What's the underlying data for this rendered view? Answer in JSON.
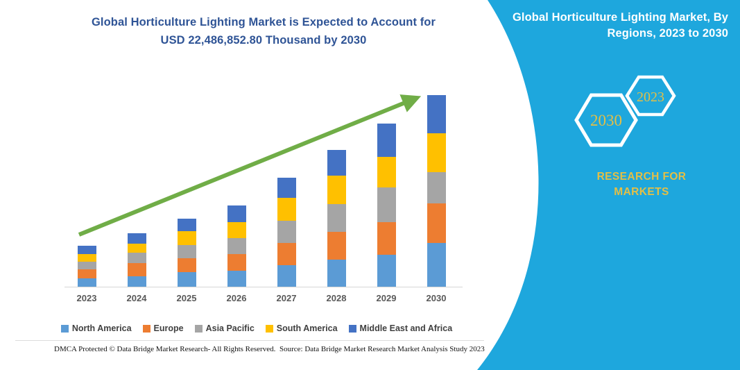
{
  "main_title": {
    "line1": "Global Horticulture Lighting Market is Expected to Account for",
    "line2": "USD 22,486,852.80 Thousand by 2030",
    "color": "#2F5496"
  },
  "chart_data": {
    "type": "bar",
    "stacked": true,
    "title": "Global Horticulture Lighting Market is Expected to Account for USD 22,486,852.80 Thousand by 2030",
    "units": "USD Thousand (values estimated from bar heights; only 2030 total is labeled)",
    "stated_2030_total": "USD 22,486,852.80 Thousand",
    "categories": [
      "2023",
      "2024",
      "2025",
      "2026",
      "2027",
      "2028",
      "2029",
      "2030"
    ],
    "series": [
      {
        "name": "North America",
        "color": "#5B9BD5",
        "values": [
          950000,
          1250000,
          1700000,
          1850000,
          2550000,
          3150000,
          3750000,
          5150000
        ]
      },
      {
        "name": "Europe",
        "color": "#ED7D31",
        "values": [
          1050000,
          1500000,
          1650000,
          1950000,
          2550000,
          3250000,
          3850000,
          4600000
        ]
      },
      {
        "name": "Asia Pacific",
        "color": "#A5A5A5",
        "values": [
          900000,
          1200000,
          1550000,
          1900000,
          2650000,
          3250000,
          4050000,
          3700000
        ]
      },
      {
        "name": "South America",
        "color": "#FFC000",
        "values": [
          940000,
          1100000,
          1580000,
          1900000,
          2650000,
          3350000,
          3600000,
          4550000
        ]
      },
      {
        "name": "Middle East and Africa",
        "color": "#4472C4",
        "values": [
          960000,
          1250000,
          1500000,
          1900000,
          2400000,
          3000000,
          3900000,
          4450000
        ]
      }
    ],
    "totals_estimated": [
      4800000,
      6300000,
      7980000,
      9500000,
      12800000,
      16000000,
      19150000,
      22450000
    ],
    "xlabel": "",
    "ylabel": "",
    "y_axis_visible": false,
    "grid": false,
    "legend_position": "bottom",
    "annotations": [
      "green upward trend arrow from 2023 to 2030"
    ],
    "trend_arrow_color": "#70AD47"
  },
  "footer": {
    "left": "DMCA Protected © Data Bridge Market Research-  All Rights Reserved.",
    "right": "Source: Data Bridge Market Research  Market Analysis Study 2023"
  },
  "side_panel": {
    "background": "#1EA7DD",
    "title": "Global Horticulture Lighting Market, By Regions, 2023 to 2030",
    "hexagons": [
      {
        "label": "2030"
      },
      {
        "label": "2023"
      }
    ],
    "brand": {
      "line1": "RESEARCH FOR",
      "line2": "MARKETS"
    },
    "accent_color": "#E4BF45"
  }
}
